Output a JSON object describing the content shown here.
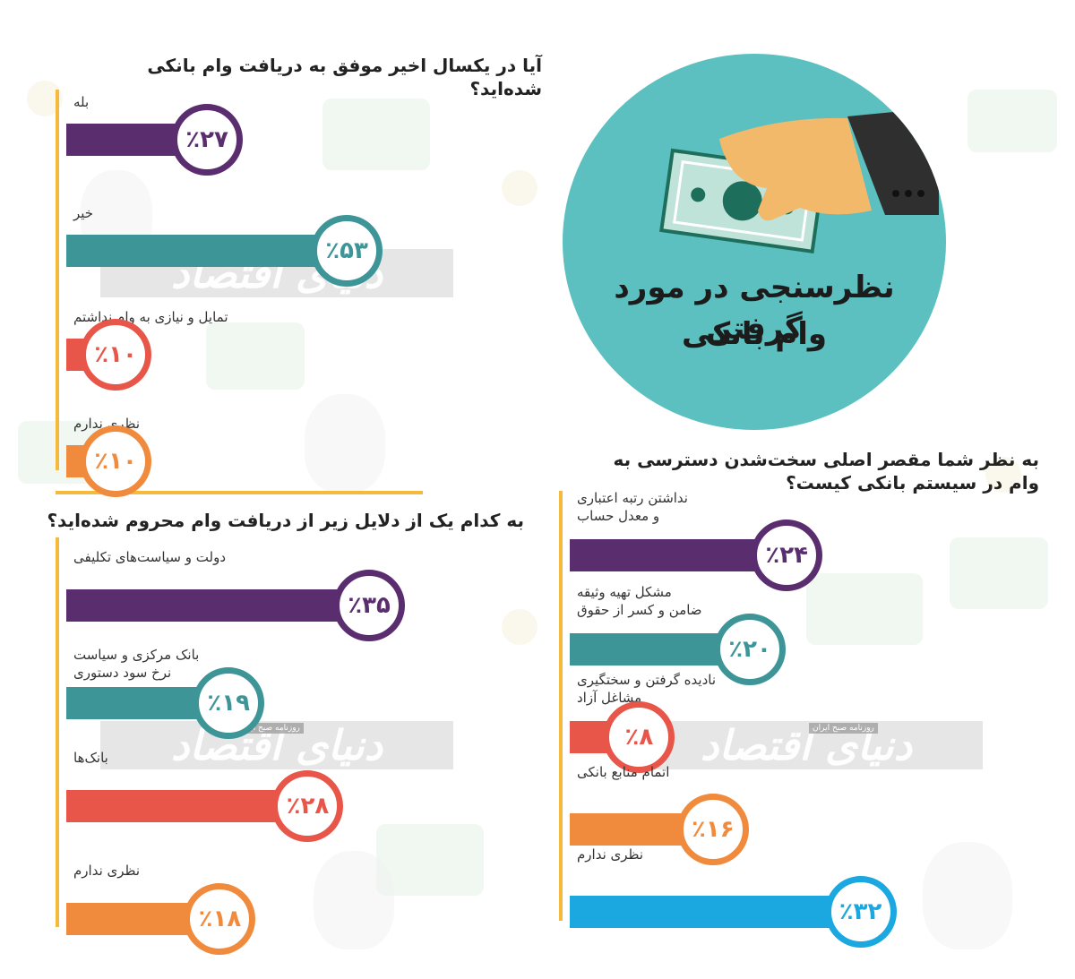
{
  "header": {
    "title_line1": "نظرسنجی در مورد گرفتن",
    "title_line2": "وام بانکی"
  },
  "watermark": {
    "text": "دنیای اقتصاد",
    "sub": "روزنامه صبح ایران"
  },
  "colors": {
    "purple": "#5a2d6f",
    "teal": "#3d9598",
    "red": "#e8564a",
    "orange": "#f08a3c",
    "blue": "#1ba7df",
    "axis": "#f5b93c",
    "hero": "#5bc0bf"
  },
  "chart_data": [
    {
      "type": "bar",
      "title": "آیا در یکسال اخیر موفق به دریافت وام بانکی شده‌اید؟",
      "categories": [
        "بله",
        "خیر",
        "تمایل و نیازی به وام نداشتم",
        "نظری ندارم"
      ],
      "values": [
        27,
        53,
        10,
        10
      ],
      "value_labels": [
        "٪۲۷",
        "٪۵۳",
        "٪۱۰",
        "٪۱۰"
      ],
      "unit": "%"
    },
    {
      "type": "bar",
      "title": "به کدام یک از دلایل زیر از دریافت وام محروم شده‌اید؟",
      "categories": [
        "دولت و سیاست‌های تکلیفی",
        "بانک مرکزی و سیاست\nنرخ سود دستوری",
        "بانک‌ها",
        "نظری ندارم"
      ],
      "values": [
        35,
        19,
        28,
        18
      ],
      "value_labels": [
        "٪۳۵",
        "٪۱۹",
        "٪۲۸",
        "٪۱۸"
      ],
      "unit": "%"
    },
    {
      "type": "bar",
      "title": "به نظر شما مقصر اصلی سخت‌شدن دسترسی به وام در سیستم بانکی کیست؟",
      "categories": [
        "نداشتن رتبه اعتباری\nو معدل حساب",
        "مشکل تهیه وثیقه\nضامن و کسر از حقوق",
        "نادیده گرفتن و سختگیری\nمشاغل آزاد",
        "اتمام منابع بانکی",
        "نظری ندارم"
      ],
      "values": [
        24,
        20,
        8,
        16,
        32
      ],
      "value_labels": [
        "٪۲۴",
        "٪۲۰",
        "٪۸",
        "٪۱۶",
        "٪۳۲"
      ],
      "unit": "%"
    }
  ]
}
